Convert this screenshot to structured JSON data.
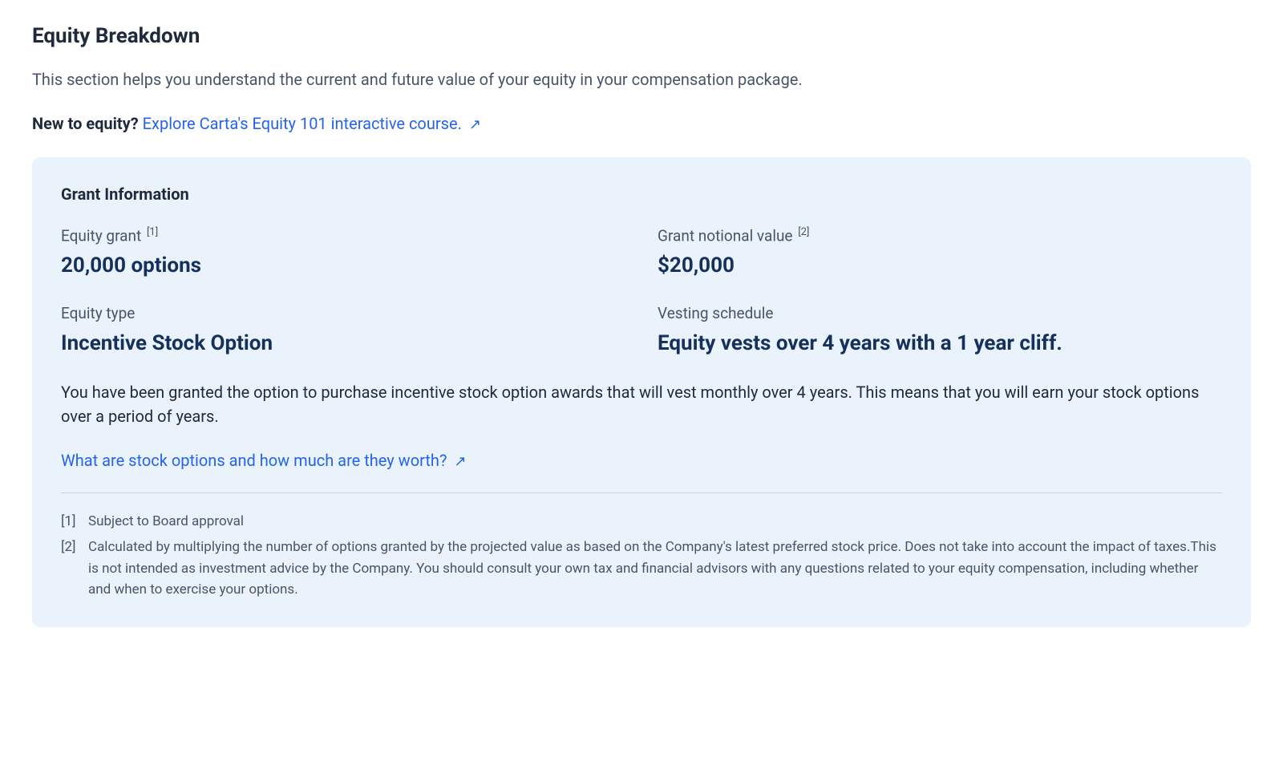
{
  "page": {
    "title": "Equity Breakdown",
    "intro": "This section helps you understand the current and future value of your equity in your compensation package.",
    "new_to_equity_label": "New to equity?",
    "equity101_link_text": "Explore Carta's Equity 101 interactive course.",
    "external_icon": "↗"
  },
  "card": {
    "title": "Grant Information",
    "fields": {
      "equity_grant": {
        "label": "Equity grant",
        "footnote_ref": "[1]",
        "value": "20,000 options"
      },
      "grant_notional_value": {
        "label": "Grant notional value",
        "footnote_ref": "[2]",
        "value": "$20,000"
      },
      "equity_type": {
        "label": "Equity type",
        "value": "Incentive Stock Option"
      },
      "vesting_schedule": {
        "label": "Vesting schedule",
        "value": "Equity vests over 4 years with a 1 year cliff."
      }
    },
    "description": "You have been granted the option to purchase incentive stock option awards that will vest monthly over 4 years. This means that you will earn your stock options over a period of years.",
    "resource_link_text": "What are stock options and how much are they worth?",
    "footnotes": [
      {
        "marker": "[1]",
        "text": "Subject to Board approval"
      },
      {
        "marker": "[2]",
        "text": "Calculated by multiplying the number of options granted by the projected value as based on the Company's latest preferred stock price. Does not take into account the impact of taxes.This is not intended as investment advice by the Company. You should consult your own tax and financial advisors with any questions related to your equity compensation, including whether and when to exercise your options."
      }
    ]
  },
  "colors": {
    "link": "#2563eb",
    "card_bg": "#eaf3fb",
    "text_primary": "#1e293b",
    "text_secondary": "#475569",
    "value_color": "#15315b",
    "divider": "#cbd5e1"
  }
}
